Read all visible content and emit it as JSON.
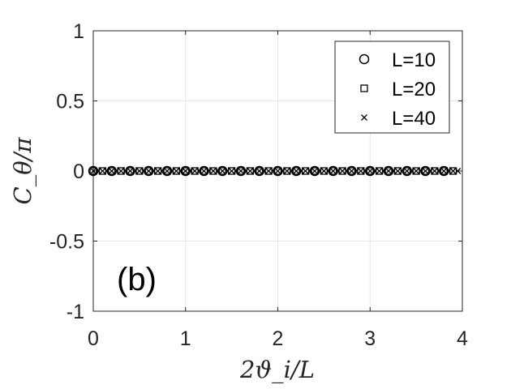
{
  "chart_data": {
    "type": "scatter",
    "xlabel": "2ϑ_i/L",
    "ylabel": "C_θ/π",
    "xlim": [
      0,
      4
    ],
    "ylim": [
      -1,
      1
    ],
    "x_ticks": [
      "0",
      "1",
      "2",
      "3",
      "4"
    ],
    "y_ticks": [
      "1",
      "0.5",
      "0",
      "-0.5",
      "-1"
    ],
    "grid": true,
    "legend_position": "top-right",
    "annotation": "(b)",
    "series": [
      {
        "name": "L=10",
        "marker": "circle",
        "x": [
          0.0,
          0.2,
          0.4,
          0.6,
          0.8,
          1.0,
          1.2,
          1.4,
          1.6,
          1.8,
          2.0,
          2.2,
          2.4,
          2.6,
          2.8,
          3.0,
          3.2,
          3.4,
          3.6,
          3.8
        ],
        "y": [
          0,
          0,
          0,
          0,
          0,
          0,
          0,
          0,
          0,
          0,
          0,
          0,
          0,
          0,
          0,
          0,
          0,
          0,
          0,
          0
        ]
      },
      {
        "name": "L=20",
        "marker": "square",
        "x": [
          0.0,
          0.1,
          0.2,
          0.3,
          0.4,
          0.5,
          0.6,
          0.7,
          0.8,
          0.9,
          1.0,
          1.1,
          1.2,
          1.3,
          1.4,
          1.5,
          1.6,
          1.7,
          1.8,
          1.9,
          2.0,
          2.1,
          2.2,
          2.3,
          2.4,
          2.5,
          2.6,
          2.7,
          2.8,
          2.9,
          3.0,
          3.1,
          3.2,
          3.3,
          3.4,
          3.5,
          3.6,
          3.7,
          3.8,
          3.9
        ],
        "y": [
          0,
          0,
          0,
          0,
          0,
          0,
          0,
          0,
          0,
          0,
          0,
          0,
          0,
          0,
          0,
          0,
          0,
          0,
          0,
          0,
          0,
          0,
          0,
          0,
          0,
          0,
          0,
          0,
          0,
          0,
          0,
          0,
          0,
          0,
          0,
          0,
          0,
          0,
          0,
          0
        ]
      },
      {
        "name": "L=40",
        "marker": "x",
        "x": [
          0.0,
          0.05,
          0.1,
          0.15,
          0.2,
          0.25,
          0.3,
          0.35,
          0.4,
          0.45,
          0.5,
          0.55,
          0.6,
          0.65,
          0.7,
          0.75,
          0.8,
          0.85,
          0.9,
          0.95,
          1.0,
          1.05,
          1.1,
          1.15,
          1.2,
          1.25,
          1.3,
          1.35,
          1.4,
          1.45,
          1.5,
          1.55,
          1.6,
          1.65,
          1.7,
          1.75,
          1.8,
          1.85,
          1.9,
          1.95,
          2.0,
          2.05,
          2.1,
          2.15,
          2.2,
          2.25,
          2.3,
          2.35,
          2.4,
          2.45,
          2.5,
          2.55,
          2.6,
          2.65,
          2.7,
          2.75,
          2.8,
          2.85,
          2.9,
          2.95,
          3.0,
          3.05,
          3.1,
          3.15,
          3.2,
          3.25,
          3.3,
          3.35,
          3.4,
          3.45,
          3.5,
          3.55,
          3.6,
          3.65,
          3.7,
          3.75,
          3.8,
          3.85,
          3.9,
          3.95
        ],
        "y": [
          0,
          0,
          0,
          0,
          0,
          0,
          0,
          0,
          0,
          0,
          0,
          0,
          0,
          0,
          0,
          0,
          0,
          0,
          0,
          0,
          0,
          0,
          0,
          0,
          0,
          0,
          0,
          0,
          0,
          0,
          0,
          0,
          0,
          0,
          0,
          0,
          0,
          0,
          0,
          0,
          0,
          0,
          0,
          0,
          0,
          0,
          0,
          0,
          0,
          0,
          0,
          0,
          0,
          0,
          0,
          0,
          0,
          0,
          0,
          0,
          0,
          0,
          0,
          0,
          0,
          0,
          0,
          0,
          0,
          0,
          0,
          0,
          0,
          0,
          0,
          0,
          0,
          0,
          0,
          0
        ]
      }
    ],
    "colors": {
      "marker": "#000000",
      "grid": "#e6e6e6",
      "axis": "#262626"
    }
  }
}
